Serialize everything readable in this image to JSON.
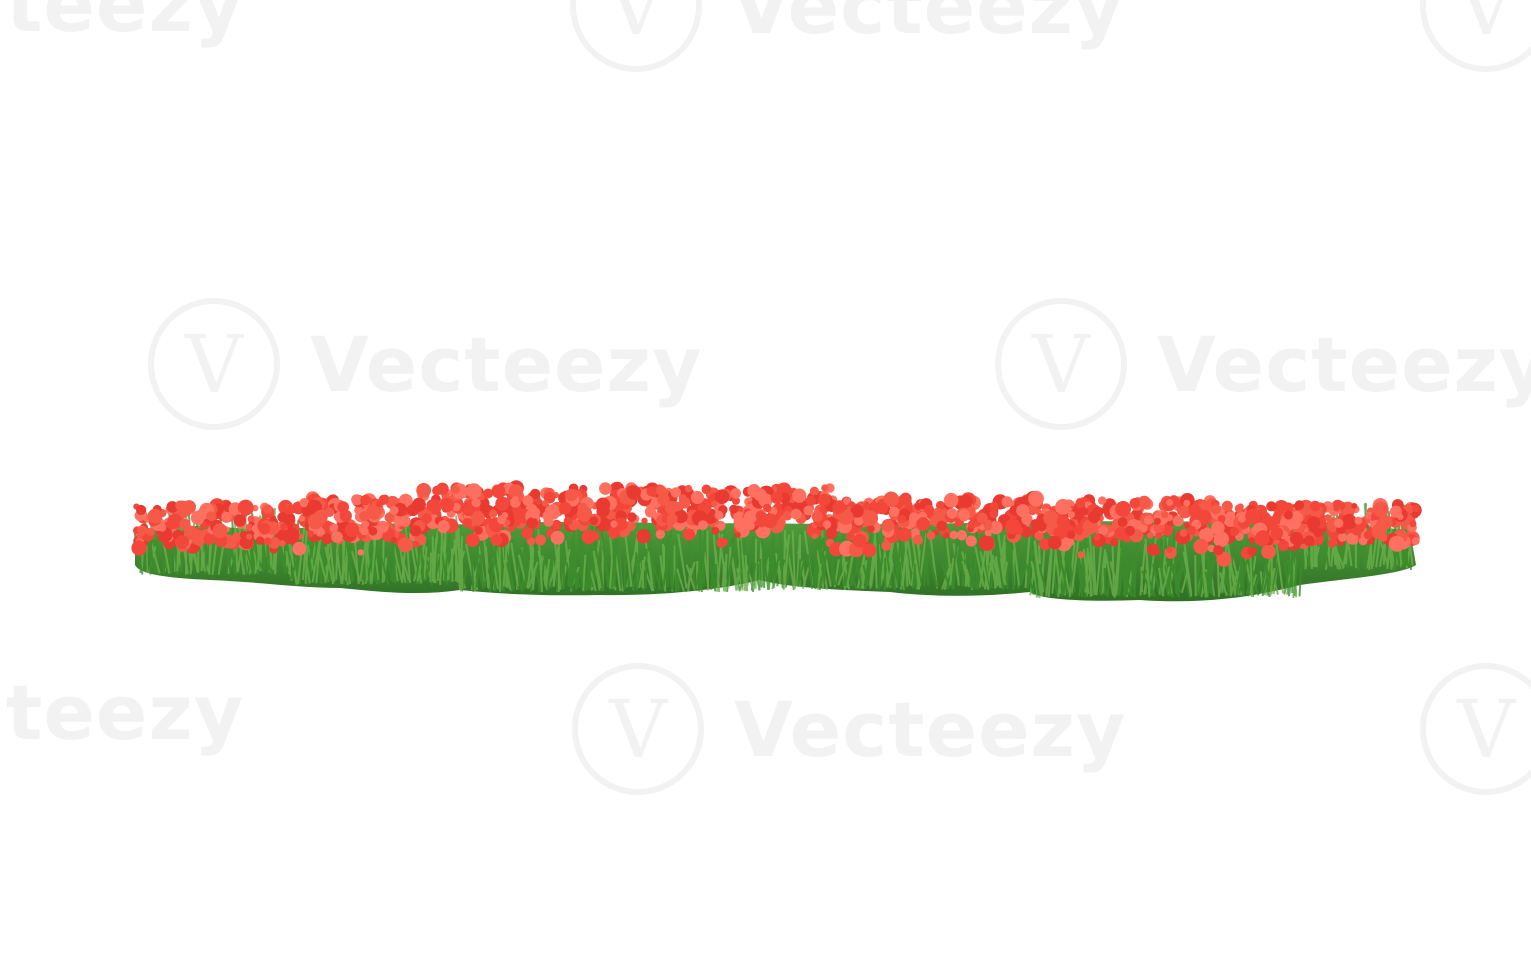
{
  "image": {
    "subject": "flowerbed-red-flowers-on-grass",
    "background_color": "#ffffff",
    "grass_color": "#3f8f2f",
    "grass_dark_color": "#2f6f24",
    "flower_color": "#f2473a",
    "flower_highlight_color": "#ff7060"
  },
  "watermark": {
    "text": "Vecteezy",
    "partial_left": "cteezy",
    "partial_right": "V"
  }
}
